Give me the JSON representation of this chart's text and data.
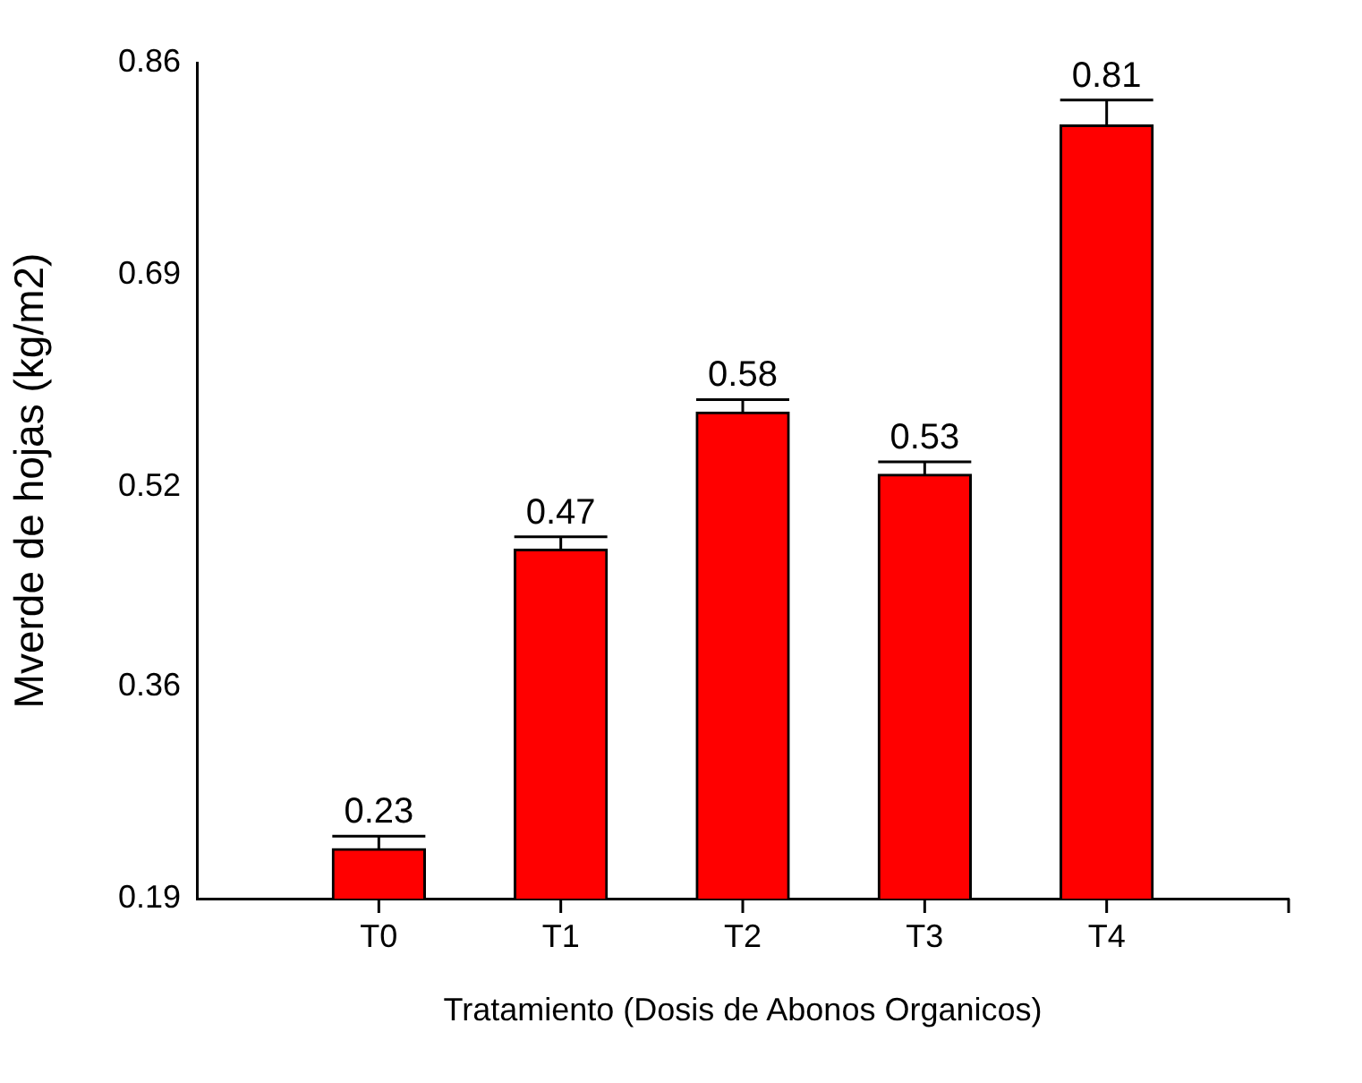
{
  "chart_data": {
    "type": "bar",
    "xlabel": "Tratamiento (Dosis de Abonos Organicos)",
    "ylabel": "Mverde de hojas (kg/m2)",
    "categories": [
      "T0",
      "T1",
      "T2",
      "T3",
      "T4"
    ],
    "values": [
      0.23,
      0.47,
      0.58,
      0.53,
      0.81
    ],
    "errors": [
      [
        0.23,
        0.24
      ],
      [
        0.47,
        0.48
      ],
      [
        0.58,
        0.59
      ],
      [
        0.53,
        0.54
      ],
      [
        0.81,
        0.83
      ]
    ],
    "color": "#ff0000",
    "ylim": [
      0.19,
      0.86
    ],
    "yticks": [
      0.19,
      0.36,
      0.52,
      0.69,
      0.86
    ],
    "data_labels": true,
    "grid": false,
    "legend": false
  }
}
